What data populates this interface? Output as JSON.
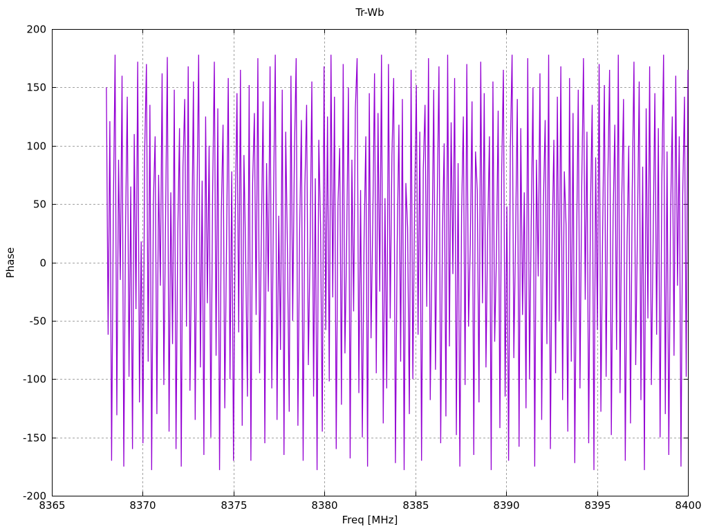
{
  "figure": {
    "background": "#ffffff",
    "title": "Tr-Wb",
    "xlabel": "Freq [MHz]",
    "ylabel": "Phase"
  },
  "chart_data": {
    "type": "line",
    "title": "Tr-Wb",
    "xlabel": "Freq [MHz]",
    "ylabel": "Phase",
    "xlim": [
      8365,
      8400
    ],
    "ylim": [
      -200,
      200
    ],
    "x_ticks": [
      8365,
      8370,
      8375,
      8380,
      8385,
      8390,
      8395,
      8400
    ],
    "y_ticks": [
      -200,
      -150,
      -100,
      -50,
      0,
      50,
      100,
      150,
      200
    ],
    "grid": true,
    "grid_style": "dashed",
    "legend_position": "none",
    "line_color": "#9400d3",
    "grid_color": "#a0a0a0",
    "axis_color": "#000000",
    "series": [
      {
        "name": "Tr-Wb",
        "x_start": 8368.0,
        "x_end": 8400.0,
        "phase_values": [
          150,
          -62,
          121,
          -170,
          45,
          178,
          -131,
          88,
          -15,
          160,
          -175,
          30,
          142,
          -98,
          65,
          -160,
          110,
          -40,
          172,
          -120,
          18,
          -155,
          95,
          170,
          -85,
          135,
          -178,
          52,
          108,
          -130,
          75,
          -20,
          162,
          -105,
          38,
          176,
          -145,
          60,
          -70,
          148,
          -160,
          25,
          115,
          -175,
          82,
          140,
          -55,
          168,
          -110,
          10,
          155,
          -135,
          48,
          178,
          -90,
          70,
          -165,
          125,
          -35,
          100,
          -150,
          58,
          172,
          -80,
          132,
          -178,
          42,
          118,
          -125,
          15,
          158,
          -100,
          78,
          -170,
          35,
          145,
          -60,
          165,
          -140,
          92,
          5,
          -115,
          152,
          -170,
          68,
          128,
          -45,
          175,
          -95,
          22,
          138,
          -155,
          85,
          -25,
          168,
          -108,
          55,
          178,
          -135,
          40,
          -75,
          148,
          -165,
          112,
          8,
          -128,
          160,
          -50,
          95,
          175,
          -140,
          28,
          122,
          -170,
          65,
          135,
          -88,
          12,
          155,
          -115,
          72,
          -178,
          105,
          32,
          -145,
          168,
          -58,
          125,
          -102,
          178,
          -30,
          142,
          -160,
          50,
          98,
          -122,
          170,
          -78,
          18,
          150,
          -168,
          88,
          -42,
          132,
          175,
          -112,
          62,
          -150,
          20,
          108,
          -175,
          145,
          -65,
          35,
          162,
          -95,
          128,
          -25,
          178,
          -138,
          55,
          -108,
          170,
          -48,
          92,
          158,
          -172,
          15,
          118,
          -85,
          140,
          -178,
          68,
          30,
          -130,
          165,
          -100,
          45,
          152,
          -62,
          112,
          -170,
          80,
          135,
          -38,
          175,
          -118,
          8,
          148,
          -92,
          52,
          168,
          -155,
          25,
          102,
          -132,
          178,
          -72,
          120,
          -10,
          158,
          -148,
          85,
          -175,
          42,
          125,
          -105,
          170,
          -55,
          15,
          138,
          -165,
          95,
          62,
          -120,
          172,
          -35,
          145,
          -90,
          28,
          108,
          -178,
          155,
          -68,
          5,
          130,
          -142,
          75,
          165,
          -115,
          48,
          -170,
          98,
          178,
          -82,
          22,
          140,
          -158,
          115,
          -45,
          60,
          -125,
          175,
          -100,
          35,
          150,
          -175,
          88,
          -12,
          162,
          -135,
          52,
          122,
          -70,
          178,
          -160,
          18,
          105,
          -95,
          142,
          -50,
          168,
          -118,
          78,
          32,
          -145,
          158,
          -85,
          128,
          -172,
          10,
          148,
          -108,
          65,
          175,
          -32,
          112,
          -155,
          45,
          135,
          -178,
          90,
          -58,
          170,
          -128,
          25,
          152,
          -98,
          72,
          165,
          -148,
          38,
          118,
          -75,
          178,
          -112,
          55,
          140,
          -170,
          15,
          100,
          -138,
          62,
          172,
          -88,
          30,
          155,
          -118,
          82,
          -178,
          132,
          -48,
          168,
          -105,
          20,
          145,
          -62,
          115,
          -150,
          70,
          178,
          -130,
          95,
          -165,
          40,
          125,
          -80,
          160,
          -20,
          108,
          -175,
          58,
          142,
          -98,
          165
        ]
      }
    ]
  }
}
